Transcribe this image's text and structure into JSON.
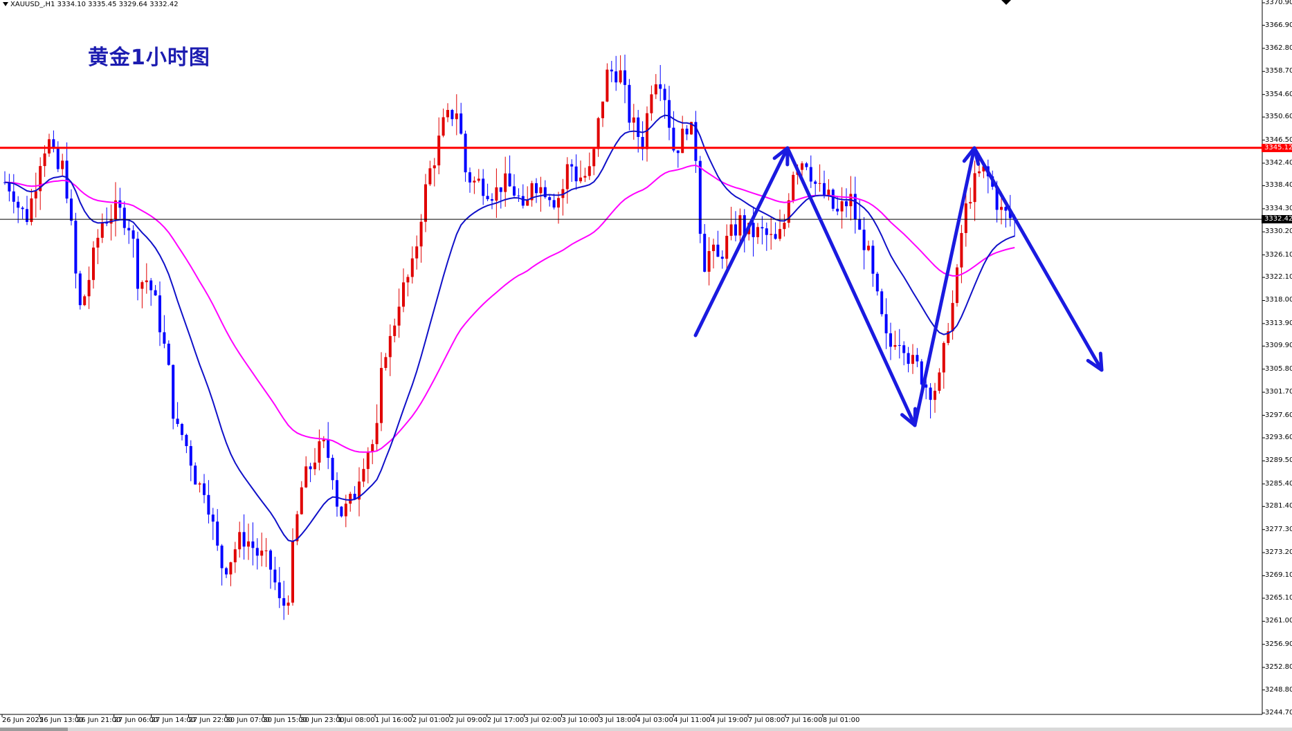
{
  "window": {
    "symbol_header": "XAUUSD_,H1  3334.10 3335.45 3329.64 3332.42"
  },
  "chart_data": {
    "type": "candlestick",
    "title": "黄金1小时图",
    "instrument": "XAUUSD_",
    "timeframe": "H1",
    "ohlc_readout": {
      "open": 3334.1,
      "high": 3335.45,
      "low": 3329.64,
      "close": 3332.42
    },
    "ylim": [
      3244.7,
      3370.9
    ],
    "y_ticks": [
      "3370.90",
      "3366.90",
      "3362.80",
      "3358.70",
      "3354.60",
      "3350.60",
      "3346.50",
      "3342.40",
      "3338.40",
      "3334.30",
      "3330.20",
      "3326.10",
      "3322.10",
      "3318.00",
      "3313.90",
      "3309.90",
      "3305.80",
      "3301.70",
      "3297.60",
      "3293.60",
      "3289.50",
      "3285.40",
      "3281.40",
      "3277.30",
      "3273.20",
      "3269.10",
      "3265.10",
      "3261.00",
      "3256.90",
      "3252.80",
      "3248.80",
      "3244.70"
    ],
    "x_ticks": [
      "26 Jun 2025",
      "26 Jun 13:00",
      "26 Jun 21:00",
      "27 Jun 06:00",
      "27 Jun 14:00",
      "27 Jun 22:00",
      "30 Jun 07:00",
      "30 Jun 15:00",
      "30 Jun 23:00",
      "1 Jul 08:00",
      "1 Jul 16:00",
      "2 Jul 01:00",
      "2 Jul 09:00",
      "2 Jul 17:00",
      "3 Jul 02:00",
      "3 Jul 10:00",
      "3 Jul 18:00",
      "4 Jul 03:00",
      "4 Jul 11:00",
      "4 Jul 19:00",
      "7 Jul 08:00",
      "7 Jul 16:00",
      "8 Jul 01:00"
    ],
    "bar_count": 229,
    "closes": [
      3339,
      3338,
      3334,
      3333,
      3338,
      3345,
      3346,
      3341,
      3342,
      3330,
      3316,
      3320,
      3326,
      3332,
      3333,
      3334,
      3333,
      3331,
      3321,
      3322,
      3319,
      3313,
      3306,
      3295,
      3294,
      3290,
      3285,
      3285,
      3278,
      3271,
      3271,
      3274,
      3276,
      3275,
      3273,
      3272,
      3270,
      3264,
      3264,
      3276,
      3285,
      3288,
      3291,
      3292,
      3289,
      3280,
      3281,
      3283,
      3289,
      3292,
      3293,
      3309,
      3311,
      3318,
      3321,
      3324,
      3333,
      3340,
      3344,
      3349,
      3351,
      3352,
      3341,
      3339,
      3339,
      3338,
      3337,
      3339,
      3338,
      3337,
      3332,
      3340,
      3338,
      3338,
      3336,
      3337,
      3343,
      3340,
      3340,
      3341,
      3350,
      3358,
      3359,
      3358,
      3351,
      3348,
      3346,
      3356,
      3359,
      3354,
      3345,
      3346,
      3350,
      3345,
      3324,
      3327,
      3325,
      3328,
      3330,
      3332,
      3330,
      3330,
      3330,
      3329,
      3328,
      3332,
      3341,
      3343,
      3343,
      3339,
      3337,
      3336,
      3333,
      3335,
      3336,
      3330,
      3328,
      3321,
      3315,
      3309,
      3312,
      3311,
      3307,
      3306,
      3303,
      3302,
      3304,
      3314,
      3319,
      3332,
      3337,
      3340,
      3341,
      3338,
      3334,
      3333,
      3332
    ],
    "annotations": {
      "resistance_level": 3345.12,
      "current_price": 3332.42
    },
    "series": [
      {
        "name": "",
        "type": "ma",
        "color": "#ff00ff",
        "role": "slow moving average"
      },
      {
        "name": "",
        "type": "ma",
        "color": "#1010c8",
        "role": "fast moving average"
      }
    ],
    "colors": {
      "bull": "#e00000",
      "bear": "#0000ff",
      "resistance": "#ff0000",
      "arrows": "#1a1ae0"
    },
    "grid": false,
    "price_tags": {
      "resistance": "3345.12",
      "current": "3332.42"
    }
  }
}
